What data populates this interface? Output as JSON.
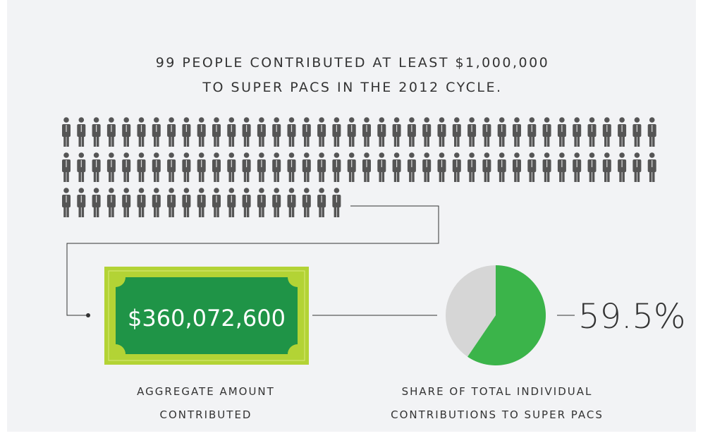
{
  "header": {
    "lines": [
      "99 PEOPLE CONTRIBUTED AT LEAST $1,000,000",
      "TO SUPER PACS IN THE 2012 CYCLE."
    ]
  },
  "pictograph": {
    "count": 99,
    "per_row": 40,
    "color": "#555555"
  },
  "amount": {
    "text": "$360,072,600",
    "caption": [
      "AGGREGATE AMOUNT",
      "CONTRIBUTED"
    ]
  },
  "chart_data": {
    "type": "pie",
    "values": [
      59.5
    ],
    "value_labels": [
      "59.5%"
    ],
    "color": "#3bb44a",
    "rest_color": "#d6d6d6",
    "caption": [
      "SHARE OF TOTAL INDIVIDUAL",
      "CONTRIBUTIONS TO SUPER PACS"
    ]
  }
}
